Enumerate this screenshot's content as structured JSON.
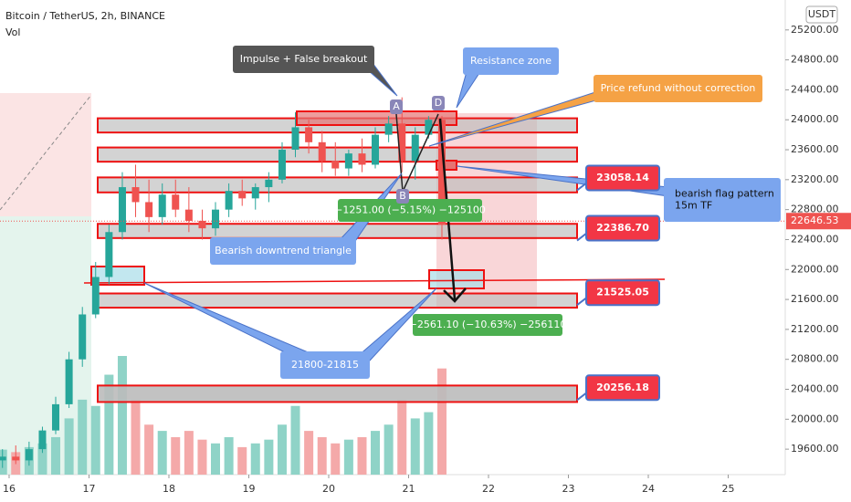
{
  "chart_data": {
    "type": "candlestick",
    "title": "Bitcoin / TetherUS, 2h, BINANCE",
    "volume_label": "Vol",
    "currency": "USDT",
    "xlim": [
      15.886,
      25.714
    ],
    "xticks": [
      16,
      17,
      18,
      19,
      20,
      21,
      22,
      23,
      24,
      25
    ],
    "ylim": [
      19260,
      25600
    ],
    "yticks": [
      {
        "value": 25200,
        "label": "25200.00"
      },
      {
        "value": 24800,
        "label": "24800.00"
      },
      {
        "value": 24400,
        "label": "24400.00"
      },
      {
        "value": 24000,
        "label": "24000.00"
      },
      {
        "value": 23600,
        "label": "23600.00"
      },
      {
        "value": 23200,
        "label": "23200.00"
      },
      {
        "value": 22800,
        "label": "22800.00"
      },
      {
        "value": 22400,
        "label": "22400.00"
      },
      {
        "value": 22000,
        "label": "22000.00"
      },
      {
        "value": 21600,
        "label": "21600.00"
      },
      {
        "value": 21200,
        "label": "21200.00"
      },
      {
        "value": 20800,
        "label": "20800.00"
      },
      {
        "value": 20400,
        "label": "20400.00"
      },
      {
        "value": 20000,
        "label": "20000.00"
      },
      {
        "value": 19600,
        "label": "19600.00"
      }
    ],
    "current_price": {
      "value": 22646.53,
      "label": "22646.53"
    },
    "candles": [
      [
        15.917,
        19450,
        19600,
        19350,
        19500
      ],
      [
        16.083,
        19500,
        19650,
        19400,
        19450
      ],
      [
        16.25,
        19450,
        19700,
        19380,
        19600
      ],
      [
        16.417,
        19600,
        19900,
        19550,
        19850
      ],
      [
        16.583,
        19850,
        20300,
        19800,
        20200
      ],
      [
        16.75,
        20200,
        20900,
        20150,
        20800
      ],
      [
        16.917,
        20800,
        21500,
        20700,
        21400
      ],
      [
        17.083,
        21400,
        22100,
        21350,
        21900
      ],
      [
        17.25,
        21900,
        22600,
        21800,
        22500
      ],
      [
        17.417,
        22500,
        23300,
        22400,
        23100
      ],
      [
        17.583,
        23100,
        23400,
        22700,
        22900
      ],
      [
        17.75,
        22900,
        23200,
        22500,
        22700
      ],
      [
        17.917,
        22700,
        23150,
        22600,
        23000
      ],
      [
        18.083,
        23000,
        23200,
        22700,
        22800
      ],
      [
        18.25,
        22800,
        23100,
        22500,
        22650
      ],
      [
        18.417,
        22650,
        22800,
        22400,
        22550
      ],
      [
        18.583,
        22550,
        22900,
        22450,
        22800
      ],
      [
        18.75,
        22800,
        23150,
        22700,
        23050
      ],
      [
        18.917,
        23050,
        23200,
        22850,
        22950
      ],
      [
        19.083,
        22950,
        23150,
        22800,
        23100
      ],
      [
        19.25,
        23100,
        23300,
        22900,
        23200
      ],
      [
        19.417,
        23200,
        23700,
        23150,
        23600
      ],
      [
        19.583,
        23600,
        24100,
        23500,
        23900
      ],
      [
        19.75,
        23900,
        24000,
        23550,
        23700
      ],
      [
        19.917,
        23700,
        23850,
        23300,
        23450
      ],
      [
        20.083,
        23450,
        23700,
        23250,
        23350
      ],
      [
        20.25,
        23350,
        23600,
        23250,
        23550
      ],
      [
        20.417,
        23550,
        23750,
        23300,
        23400
      ],
      [
        20.583,
        23400,
        23900,
        23350,
        23800
      ],
      [
        20.75,
        23800,
        24050,
        23700,
        23950
      ],
      [
        20.917,
        23950,
        24300,
        23300,
        23450
      ],
      [
        21.083,
        23450,
        23900,
        23200,
        23800
      ],
      [
        21.25,
        23800,
        24050,
        23750,
        24000
      ],
      [
        21.417,
        24000,
        24050,
        22400,
        22600
      ]
    ],
    "volume": [
      20,
      18,
      22,
      25,
      30,
      45,
      60,
      55,
      80,
      95,
      60,
      40,
      35,
      30,
      35,
      28,
      25,
      30,
      22,
      25,
      28,
      40,
      55,
      35,
      30,
      25,
      28,
      30,
      35,
      40,
      60,
      45,
      50,
      85
    ],
    "zones": [
      [
        23830,
        24020
      ],
      [
        23440,
        23630
      ],
      [
        23030,
        23230
      ],
      [
        22420,
        22610
      ],
      [
        21490,
        21680
      ],
      [
        20230,
        20450
      ]
    ],
    "price_labels": [
      {
        "value": 23058.14,
        "label": "23058.14"
      },
      {
        "value": 22386.7,
        "label": "22386.70"
      },
      {
        "value": 21525.05,
        "label": "21525.05"
      },
      {
        "value": 20256.18,
        "label": "20256.18"
      }
    ],
    "annotations": [
      "Impulse + False breakout",
      "Resistance zone",
      "Price refund without correction",
      "bearish flag pattern",
      "15m TF",
      "Bearish downtrend triangle",
      "21800-21815"
    ],
    "measures": [
      "−1251.00 (−5.15%) −125100",
      "−2561.10 (−10.63%) −256110"
    ],
    "points": [
      "A",
      "B",
      "D"
    ]
  }
}
